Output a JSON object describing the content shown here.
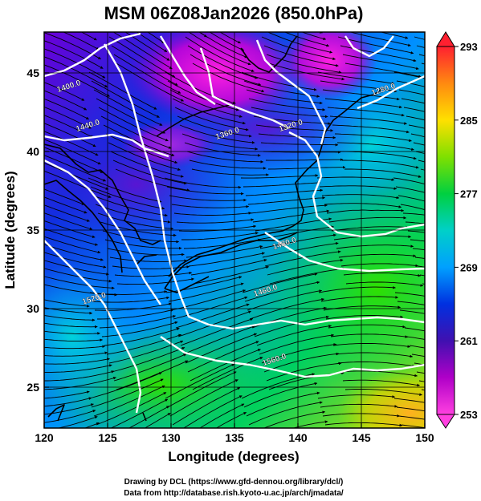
{
  "title": "MSM 06Z08Jan2026 (850.0hPa)",
  "xlabel": "Longitude (degrees)",
  "ylabel": "Latitude  (degrees)",
  "x_ticks": [
    "120",
    "125",
    "130",
    "135",
    "140",
    "145",
    "150"
  ],
  "y_ticks": [
    "25",
    "30",
    "35",
    "40",
    "45"
  ],
  "colorbar_ticks": [
    "293",
    "285",
    "277",
    "269",
    "261",
    "253"
  ],
  "credit_line1": "Drawing by DCL (https://www.gfd-dennou.org/library/dcl/)",
  "credit_line2": "Data from http://database.rish.kyoto-u.ac.jp/arch/jmadata/",
  "chart_data": {
    "type": "heatmap",
    "title": "MSM 06Z08Jan2026 (850.0hPa)",
    "xlabel": "Longitude (degrees)",
    "ylabel": "Latitude  (degrees)",
    "xlim": [
      120,
      150
    ],
    "ylim": [
      22.4,
      47.6
    ],
    "colorbar": {
      "min": 253,
      "max": 293,
      "ticks": [
        293,
        285,
        277,
        269,
        261,
        253
      ],
      "label": ""
    },
    "contours": [
      {
        "label": "1400.0",
        "lon": 122.0,
        "lat": 44.0
      },
      {
        "label": "1440.0",
        "lon": 123.5,
        "lat": 41.5
      },
      {
        "label": "1360.0",
        "lon": 134.5,
        "lat": 41.0
      },
      {
        "label": "1320.0",
        "lon": 139.5,
        "lat": 41.5
      },
      {
        "label": "1280.0",
        "lon": 146.8,
        "lat": 43.8
      },
      {
        "label": "1480.0",
        "lon": 139.0,
        "lat": 34.0
      },
      {
        "label": "1520.0",
        "lon": 124.0,
        "lat": 30.5
      },
      {
        "label": "1460.0",
        "lon": 137.5,
        "lat": 31.0
      },
      {
        "label": "1560.0",
        "lon": 138.2,
        "lat": 26.6
      }
    ],
    "grid": true,
    "legend": "colorbar right"
  },
  "colors": {
    "colorbar_stops": [
      "#ff2030",
      "#ff8a10",
      "#ffe000",
      "#7fe000",
      "#00d040",
      "#00d0c8",
      "#00a0ff",
      "#0030e0",
      "#4010b0",
      "#b000c8",
      "#ff40e0"
    ]
  }
}
